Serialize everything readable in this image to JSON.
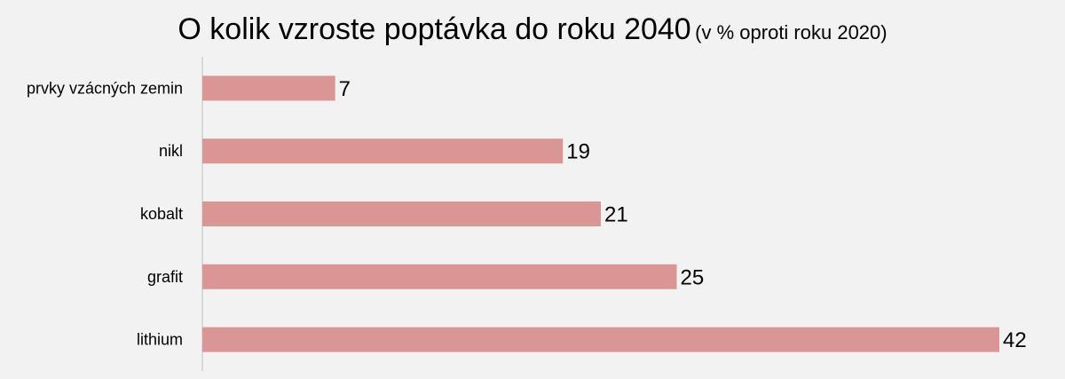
{
  "chart_data": {
    "type": "bar",
    "orientation": "horizontal",
    "title": "O kolik vzroste poptávka do roku 2040",
    "subtitle": "(v % oproti roku 2020)",
    "categories": [
      "prvky vzácných zemin",
      "nikl",
      "kobalt",
      "grafit",
      "lithium"
    ],
    "values": [
      7,
      19,
      21,
      25,
      42
    ],
    "xlim": [
      0,
      42
    ],
    "grid": false,
    "legend": "none",
    "bar_color": "#da9694",
    "axis_color": "#bfbfbf",
    "background_color": "#f2f2f2"
  }
}
